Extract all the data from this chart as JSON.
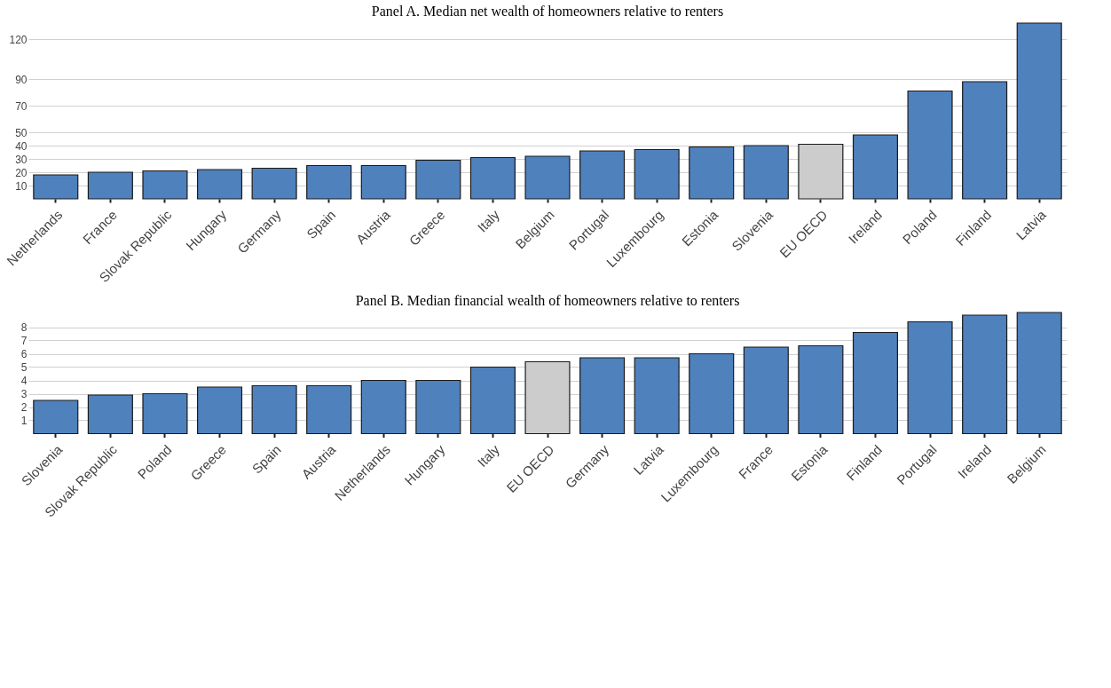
{
  "chart_data": [
    {
      "type": "bar",
      "title": "Panel A. Median net wealth of homeowners relative to renters",
      "categories": [
        "Netherlands",
        "France",
        "Slovak Republic",
        "Hungary",
        "Germany",
        "Spain",
        "Austria",
        "Greece",
        "Italy",
        "Belgium",
        "Portugal",
        "Luxembourg",
        "Estonia",
        "Slovenia",
        "EU OECD",
        "Ireland",
        "Poland",
        "Finland",
        "Latvia"
      ],
      "values": [
        18,
        20,
        21,
        22,
        23,
        25,
        25,
        29,
        31,
        32,
        36,
        37,
        39,
        40,
        41,
        48,
        81,
        88,
        132
      ],
      "colors": [
        "#4f81bd",
        "#4f81bd",
        "#4f81bd",
        "#4f81bd",
        "#4f81bd",
        "#4f81bd",
        "#4f81bd",
        "#4f81bd",
        "#4f81bd",
        "#4f81bd",
        "#4f81bd",
        "#4f81bd",
        "#4f81bd",
        "#4f81bd",
        "#cccccc",
        "#4f81bd",
        "#4f81bd",
        "#4f81bd",
        "#4f81bd"
      ],
      "ylim": [
        0,
        132
      ],
      "yticks": [
        10,
        20,
        30,
        40,
        50,
        70,
        90,
        120
      ],
      "grid": "y"
    },
    {
      "type": "bar",
      "title": "Panel B. Median financial wealth of homeowners relative to renters",
      "categories": [
        "Slovenia",
        "Slovak Republic",
        "Poland",
        "Greece",
        "Spain",
        "Austria",
        "Netherlands",
        "Hungary",
        "Italy",
        "EU OECD",
        "Germany",
        "Latvia",
        "Luxembourg",
        "France",
        "Estonia",
        "Finland",
        "Portugal",
        "Ireland",
        "Belgium"
      ],
      "values": [
        2.5,
        2.9,
        3.0,
        3.5,
        3.6,
        3.6,
        4.0,
        4.0,
        5.0,
        5.4,
        5.7,
        5.7,
        6.0,
        6.5,
        6.6,
        7.6,
        8.4,
        8.9,
        9.1
      ],
      "colors": [
        "#4f81bd",
        "#4f81bd",
        "#4f81bd",
        "#4f81bd",
        "#4f81bd",
        "#4f81bd",
        "#4f81bd",
        "#4f81bd",
        "#4f81bd",
        "#cccccc",
        "#4f81bd",
        "#4f81bd",
        "#4f81bd",
        "#4f81bd",
        "#4f81bd",
        "#4f81bd",
        "#4f81bd",
        "#4f81bd",
        "#4f81bd"
      ],
      "ylim": [
        0,
        9.1
      ],
      "yticks": [
        1,
        2,
        3,
        4,
        5,
        6,
        7,
        8
      ],
      "grid": "y"
    }
  ]
}
